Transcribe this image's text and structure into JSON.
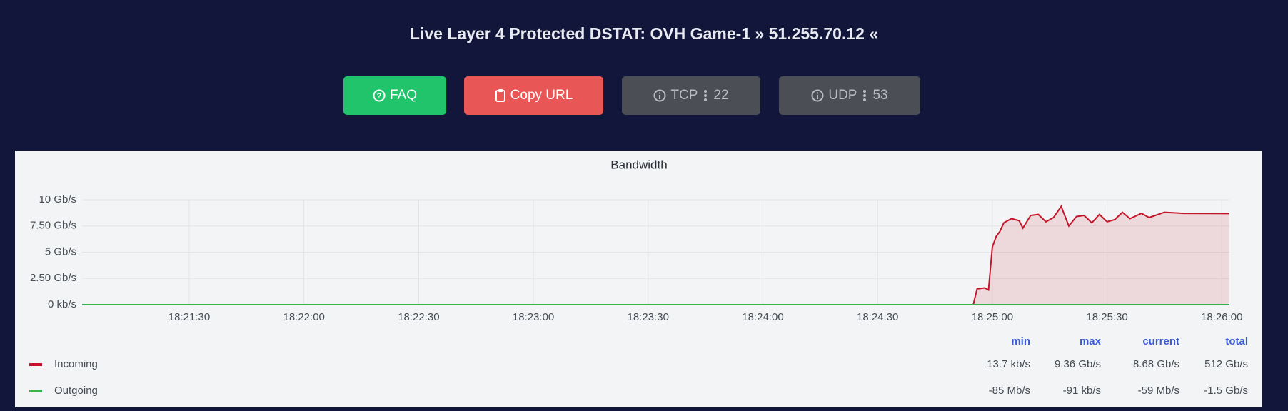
{
  "header": {
    "title": "Live Layer 4 Protected DSTAT: OVH Game-1 » 51.255.70.12 «"
  },
  "buttons": [
    {
      "label": "FAQ"
    },
    {
      "label": "Copy URL"
    },
    {
      "label": "TCP",
      "count": 22
    },
    {
      "label": "UDP",
      "count": 53
    }
  ],
  "chart_data": {
    "type": "line",
    "title": "Bandwidth",
    "x": [
      "18:21:02",
      "18:24:55",
      "18:24:56",
      "18:24:58",
      "18:24:59",
      "18:25:00",
      "18:25:01",
      "18:25:02",
      "18:25:03",
      "18:25:05",
      "18:25:07",
      "18:25:08",
      "18:25:10",
      "18:25:12",
      "18:25:14",
      "18:25:16",
      "18:25:18",
      "18:25:20",
      "18:25:22",
      "18:25:24",
      "18:25:26",
      "18:25:28",
      "18:25:30",
      "18:25:32",
      "18:25:34",
      "18:25:36",
      "18:25:39",
      "18:25:41",
      "18:25:45",
      "18:25:50",
      "18:26:02"
    ],
    "series": [
      {
        "name": "Incoming",
        "color": "#c4162a",
        "values": [
          0,
          0,
          1.5,
          1.6,
          1.4,
          5.5,
          6.5,
          7.0,
          7.8,
          8.2,
          8.0,
          7.3,
          8.5,
          8.6,
          7.9,
          8.3,
          9.36,
          7.5,
          8.4,
          8.5,
          7.8,
          8.6,
          7.9,
          8.1,
          8.8,
          8.2,
          8.7,
          8.3,
          8.8,
          8.7,
          8.68
        ]
      },
      {
        "name": "Outgoing",
        "color": "#37b24d",
        "values": [
          0,
          0,
          0,
          0,
          0,
          0,
          0,
          0,
          0,
          0,
          0,
          0,
          0,
          0,
          0,
          0,
          0,
          0,
          0,
          0,
          0,
          0,
          0,
          0,
          0,
          0,
          0,
          0,
          0,
          0,
          0
        ]
      }
    ],
    "xlim": [
      "18:21:02",
      "18:26:02"
    ],
    "xticks": [
      "18:21:30",
      "18:22:00",
      "18:22:30",
      "18:23:00",
      "18:23:30",
      "18:24:00",
      "18:24:30",
      "18:25:00",
      "18:25:30",
      "18:26:00"
    ],
    "ylim": [
      0,
      10
    ],
    "yticks": [
      {
        "value": 0,
        "label": "0 kb/s"
      },
      {
        "value": 2.5,
        "label": "2.50 Gb/s"
      },
      {
        "value": 5,
        "label": "5 Gb/s"
      },
      {
        "value": 7.5,
        "label": "7.50 Gb/s"
      },
      {
        "value": 10,
        "label": "10 Gb/s"
      }
    ],
    "grid": true
  },
  "legend_table": {
    "columns": [
      "min",
      "max",
      "current",
      "total"
    ],
    "rows": [
      [
        "13.7 kb/s",
        "9.36 Gb/s",
        "8.68 Gb/s",
        "512 Gb/s"
      ],
      [
        "-85 Mb/s",
        "-91 kb/s",
        "-59 Mb/s",
        "-1.5 Gb/s"
      ]
    ]
  }
}
